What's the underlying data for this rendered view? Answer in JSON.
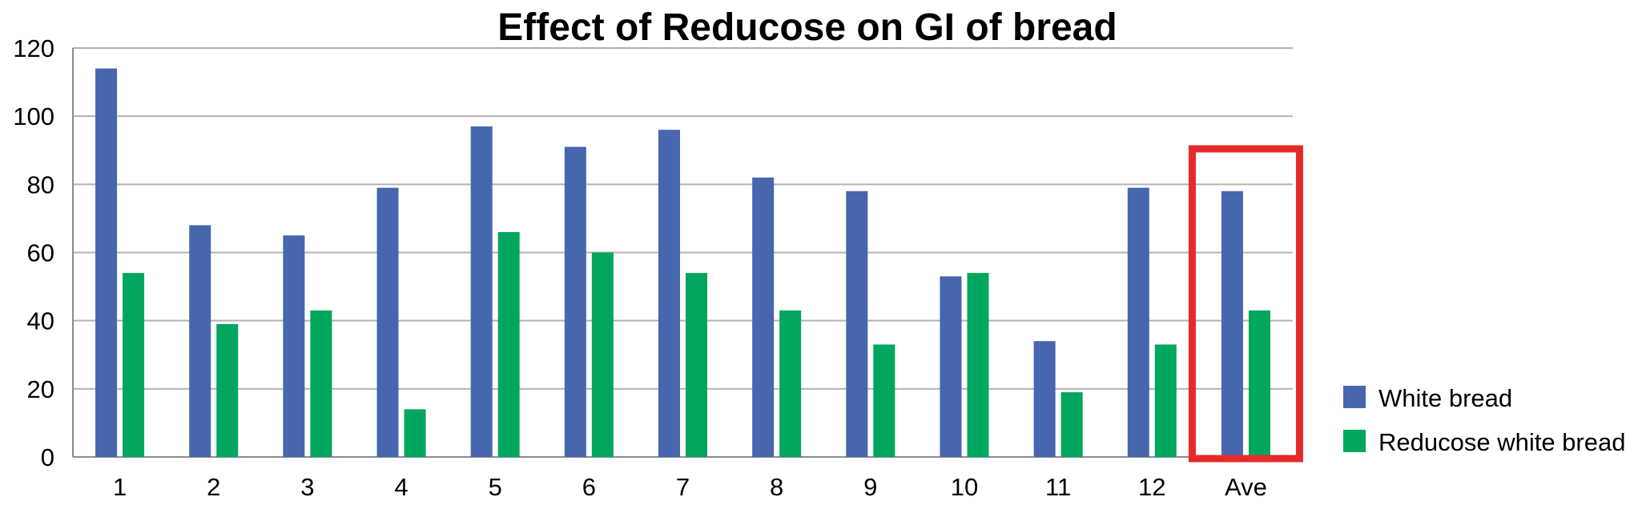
{
  "chart_data": {
    "type": "bar",
    "title": "Effect of Reducose on GI of bread",
    "xlabel": "",
    "ylabel": "",
    "ylim": [
      0,
      120
    ],
    "yticks": [
      "0",
      "20",
      "40",
      "60",
      "80",
      "100",
      "120"
    ],
    "categories": [
      "1",
      "2",
      "3",
      "4",
      "5",
      "6",
      "7",
      "8",
      "9",
      "10",
      "11",
      "12",
      "Ave"
    ],
    "series": [
      {
        "name": "White bread",
        "color": "#4666ae",
        "values": [
          114,
          68,
          65,
          79,
          97,
          91,
          96,
          82,
          78,
          53,
          34,
          79,
          78
        ]
      },
      {
        "name": "Reducose white bread",
        "color": "#00a65d",
        "values": [
          54,
          39,
          43,
          14,
          66,
          60,
          54,
          43,
          33,
          54,
          19,
          33,
          43
        ]
      }
    ],
    "grid": true,
    "legend_position": "bottom-right",
    "highlight": {
      "category": "Ave",
      "color": "#e52a2a"
    }
  }
}
